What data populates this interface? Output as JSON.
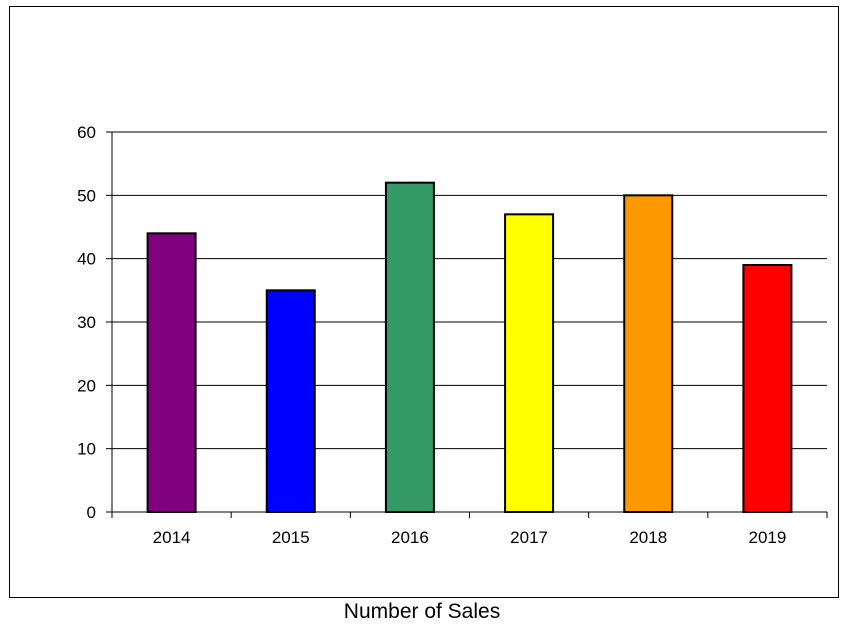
{
  "chart_data": {
    "type": "bar",
    "categories": [
      "2014",
      "2015",
      "2016",
      "2017",
      "2018",
      "2019"
    ],
    "values": [
      44,
      35,
      52,
      47,
      50,
      39
    ],
    "colors": [
      "#800080",
      "#0000ff",
      "#339966",
      "#ffff00",
      "#ff9900",
      "#ff0000"
    ],
    "title": "",
    "xlabel": "Number of Sales",
    "ylabel": "",
    "ylim": [
      0,
      60
    ],
    "yticks": [
      0,
      10,
      20,
      30,
      40,
      50,
      60
    ],
    "grid": true,
    "legend": "none"
  }
}
